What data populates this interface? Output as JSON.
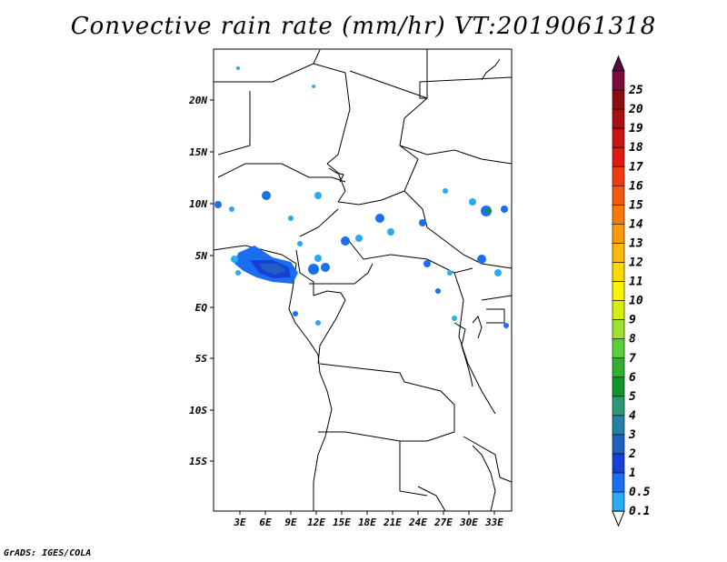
{
  "title": "Convective rain rate (mm/hr) VT:2019061318",
  "credit": "GrADS: IGES/COLA",
  "map": {
    "lat_labels": [
      "20N",
      "15N",
      "10N",
      "5N",
      "EQ",
      "5S",
      "10S",
      "15S"
    ],
    "lon_labels": [
      "3E",
      "6E",
      "9E",
      "12E",
      "15E",
      "18E",
      "21E",
      "24E",
      "27E",
      "30E",
      "33E"
    ]
  },
  "colorbar": {
    "levels": [
      "25",
      "20",
      "19",
      "18",
      "17",
      "16",
      "15",
      "14",
      "13",
      "12",
      "11",
      "10",
      "9",
      "8",
      "7",
      "6",
      "5",
      "4",
      "3",
      "2",
      "1",
      "0.5",
      "0.1"
    ],
    "colors": [
      "#7f0a3c",
      "#8c0f0f",
      "#a81010",
      "#c81414",
      "#e01a10",
      "#f03c0c",
      "#f55a0a",
      "#f77a08",
      "#f99a06",
      "#fbba04",
      "#fdd803",
      "#fff200",
      "#d4ee10",
      "#9de22c",
      "#5ccd3c",
      "#2fb02f",
      "#13932b",
      "#2a9a74",
      "#2680a6",
      "#2060c0",
      "#1840d8",
      "#1a6ef0",
      "#2aaaf5"
    ]
  }
}
